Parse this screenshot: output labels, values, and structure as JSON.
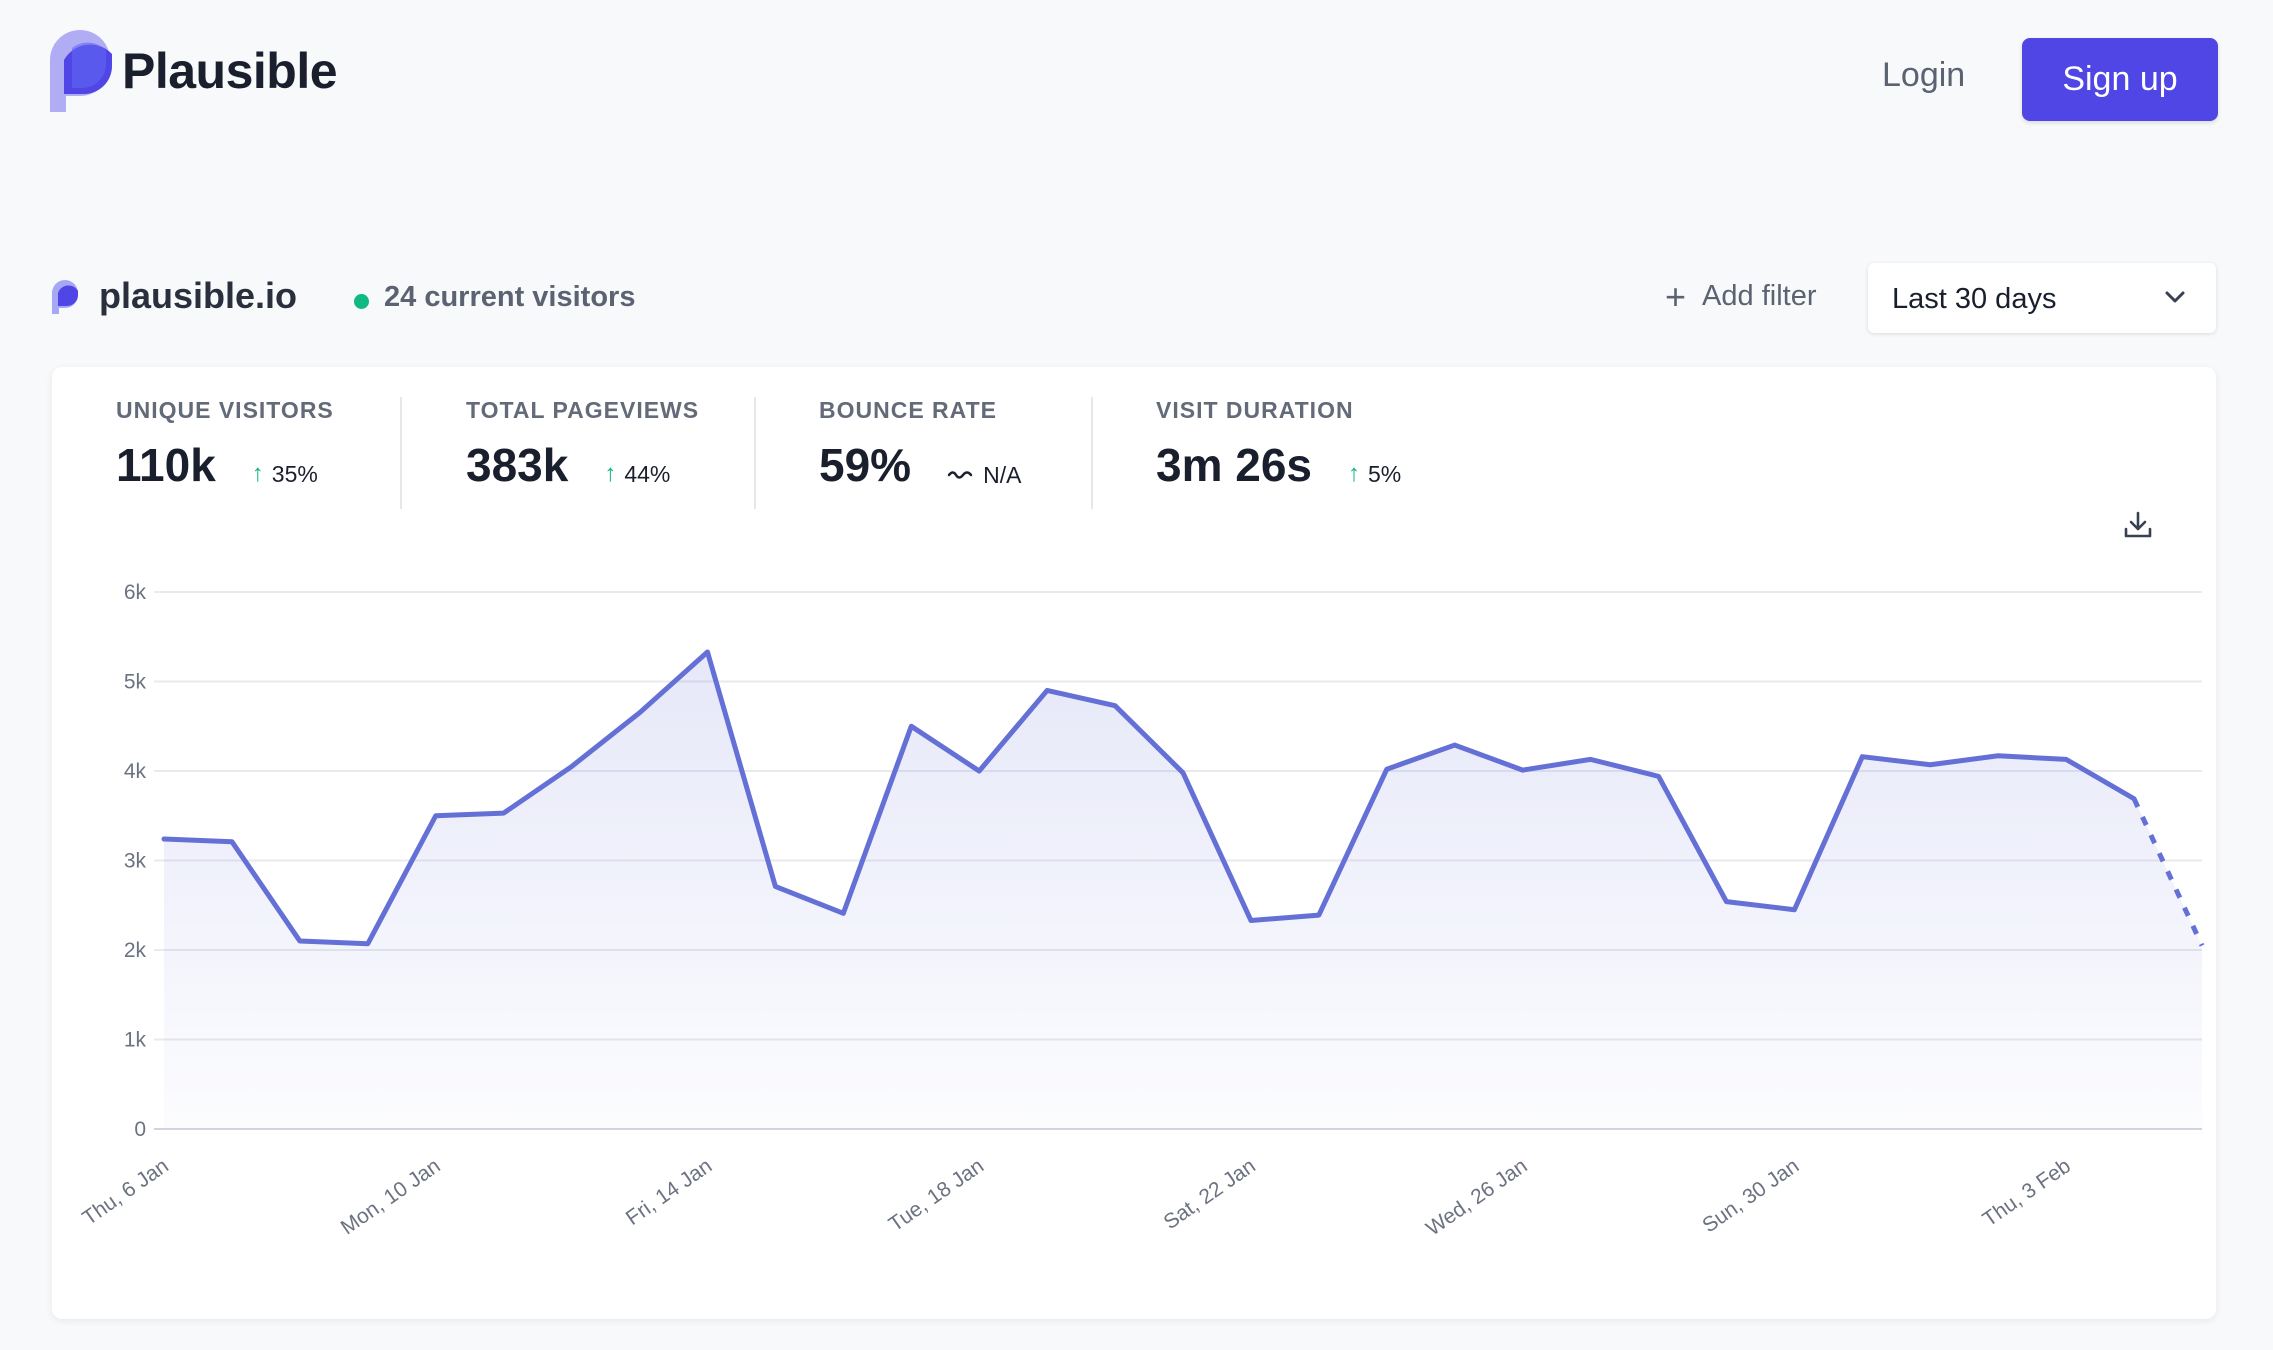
{
  "header": {
    "brand": "Plausible",
    "login_label": "Login",
    "signup_label": "Sign up"
  },
  "site": {
    "domain": "plausible.io",
    "current_visitors": "24 current visitors",
    "add_filter_label": "Add filter",
    "period_label": "Last 30 days"
  },
  "metrics": [
    {
      "label": "UNIQUE VISITORS",
      "value": "110k",
      "change": "35%",
      "trend": "up"
    },
    {
      "label": "TOTAL PAGEVIEWS",
      "value": "383k",
      "change": "44%",
      "trend": "up"
    },
    {
      "label": "BOUNCE RATE",
      "value": "59%",
      "change": "N/A",
      "trend": "none"
    },
    {
      "label": "VISIT DURATION",
      "value": "3m 26s",
      "change": "5%",
      "trend": "up"
    }
  ],
  "colors": {
    "accent": "#4f46e5",
    "line": "#6470d6",
    "positive": "#10b981"
  },
  "chart_data": {
    "type": "area",
    "metric": "Unique visitors",
    "x": [
      "Thu, 6 Jan",
      "Fri, 7 Jan",
      "Sat, 8 Jan",
      "Sun, 9 Jan",
      "Mon, 10 Jan",
      "Tue, 11 Jan",
      "Wed, 12 Jan",
      "Thu, 13 Jan",
      "Fri, 14 Jan",
      "Sat, 15 Jan",
      "Sun, 16 Jan",
      "Mon, 17 Jan",
      "Tue, 18 Jan",
      "Wed, 19 Jan",
      "Thu, 20 Jan",
      "Fri, 21 Jan",
      "Sat, 22 Jan",
      "Sun, 23 Jan",
      "Mon, 24 Jan",
      "Tue, 25 Jan",
      "Wed, 26 Jan",
      "Thu, 27 Jan",
      "Fri, 28 Jan",
      "Sat, 29 Jan",
      "Sun, 30 Jan",
      "Mon, 31 Jan",
      "Tue, 1 Feb",
      "Wed, 2 Feb",
      "Thu, 3 Feb",
      "Fri, 4 Feb",
      "Sat, 5 Feb"
    ],
    "values": [
      3240,
      3210,
      2100,
      2070,
      3500,
      3530,
      4050,
      4650,
      5330,
      2710,
      2410,
      4500,
      4000,
      4900,
      4730,
      3980,
      2330,
      2390,
      4020,
      4290,
      4010,
      4130,
      3940,
      2540,
      2450,
      4160,
      4070,
      4170,
      4130,
      3690,
      2050
    ],
    "incomplete_from_index": 29,
    "x_tick_labels": [
      "Thu, 6 Jan",
      "Mon, 10 Jan",
      "Fri, 14 Jan",
      "Tue, 18 Jan",
      "Sat, 22 Jan",
      "Wed, 26 Jan",
      "Sun, 30 Jan",
      "Thu, 3 Feb"
    ],
    "y_tick_labels": [
      "0",
      "1k",
      "2k",
      "3k",
      "4k",
      "5k",
      "6k"
    ],
    "ylim": [
      0,
      6000
    ],
    "grid": true,
    "title": "",
    "xlabel": "",
    "ylabel": ""
  }
}
